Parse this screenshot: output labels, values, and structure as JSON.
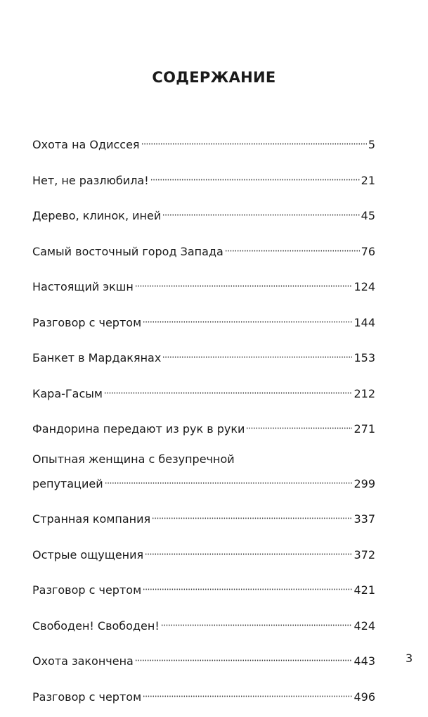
{
  "title": "СОДЕРЖАНИЕ",
  "entries": [
    {
      "title": "Охота на Одиссея",
      "page": "5"
    },
    {
      "title": "Нет, не разлюбила!",
      "page": "21"
    },
    {
      "title": "Дерево, клинок, иней",
      "page": "45"
    },
    {
      "title": "Самый восточный город Запада",
      "page": "76"
    },
    {
      "title": "Настоящий экшн",
      "page": "124"
    },
    {
      "title": "Разговор с чертом",
      "page": "144"
    },
    {
      "title": "Банкет в Мардакянах",
      "page": "153"
    },
    {
      "title": "Кара-Гасым",
      "page": "212"
    },
    {
      "title": "Фандорина передают из рук в руки",
      "page": "271"
    },
    {
      "title_line1": "Опытная женщина с безупречной",
      "title": "репутацией",
      "page": "299"
    },
    {
      "title": "Странная компания",
      "page": "337"
    },
    {
      "title": "Острые ощущения",
      "page": "372"
    },
    {
      "title": "Разговор с чертом",
      "page": "421"
    },
    {
      "title": "Свободен! Свободен!",
      "page": "424"
    },
    {
      "title": "Охота закончена",
      "page": "443"
    },
    {
      "title": "Разговор с чертом",
      "page": "496"
    }
  ],
  "page_number": "3"
}
